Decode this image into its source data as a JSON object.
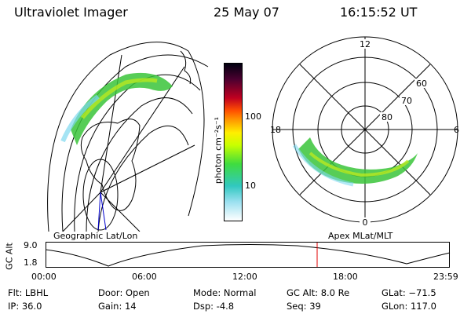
{
  "header": {
    "instrument": "Ultraviolet Imager",
    "date": "25 May 07",
    "time": "16:15:52 UT"
  },
  "left_panel": {
    "label": "Geographic Lat/Lon"
  },
  "right_panel": {
    "label": "Apex MLat/MLT",
    "mlt_labels": {
      "top": "12",
      "bottom": "0",
      "left": "18",
      "right": "6"
    },
    "mlat_labels": [
      "60",
      "70",
      "80"
    ]
  },
  "colorbar": {
    "unit_label": "photon cm⁻²s⁻¹",
    "ticks": [
      "100",
      "10"
    ]
  },
  "altitude_plot": {
    "ylabel": "GC Alt",
    "yticks": [
      "9.0",
      "1.8"
    ],
    "xticks": [
      "00:00",
      "06:00",
      "12:00",
      "18:00",
      "23:59"
    ],
    "marker_color": "#e00000"
  },
  "info": {
    "flt": "Flt: LBHL",
    "ip": "IP: 36.0",
    "door": "Door: Open",
    "gain": "Gain: 14",
    "mode": "Mode: Normal",
    "dsp": "Dsp:    -4.8",
    "gcalt": "GC Alt: 8.0 Re",
    "seq": "Seq: 39",
    "glat": "GLat: −71.5",
    "glon": "GLon: 117.0"
  },
  "colors": {
    "aurora_low": "#7fd8f0",
    "aurora_mid": "#39c43a",
    "aurora_high": "#b8e820"
  }
}
